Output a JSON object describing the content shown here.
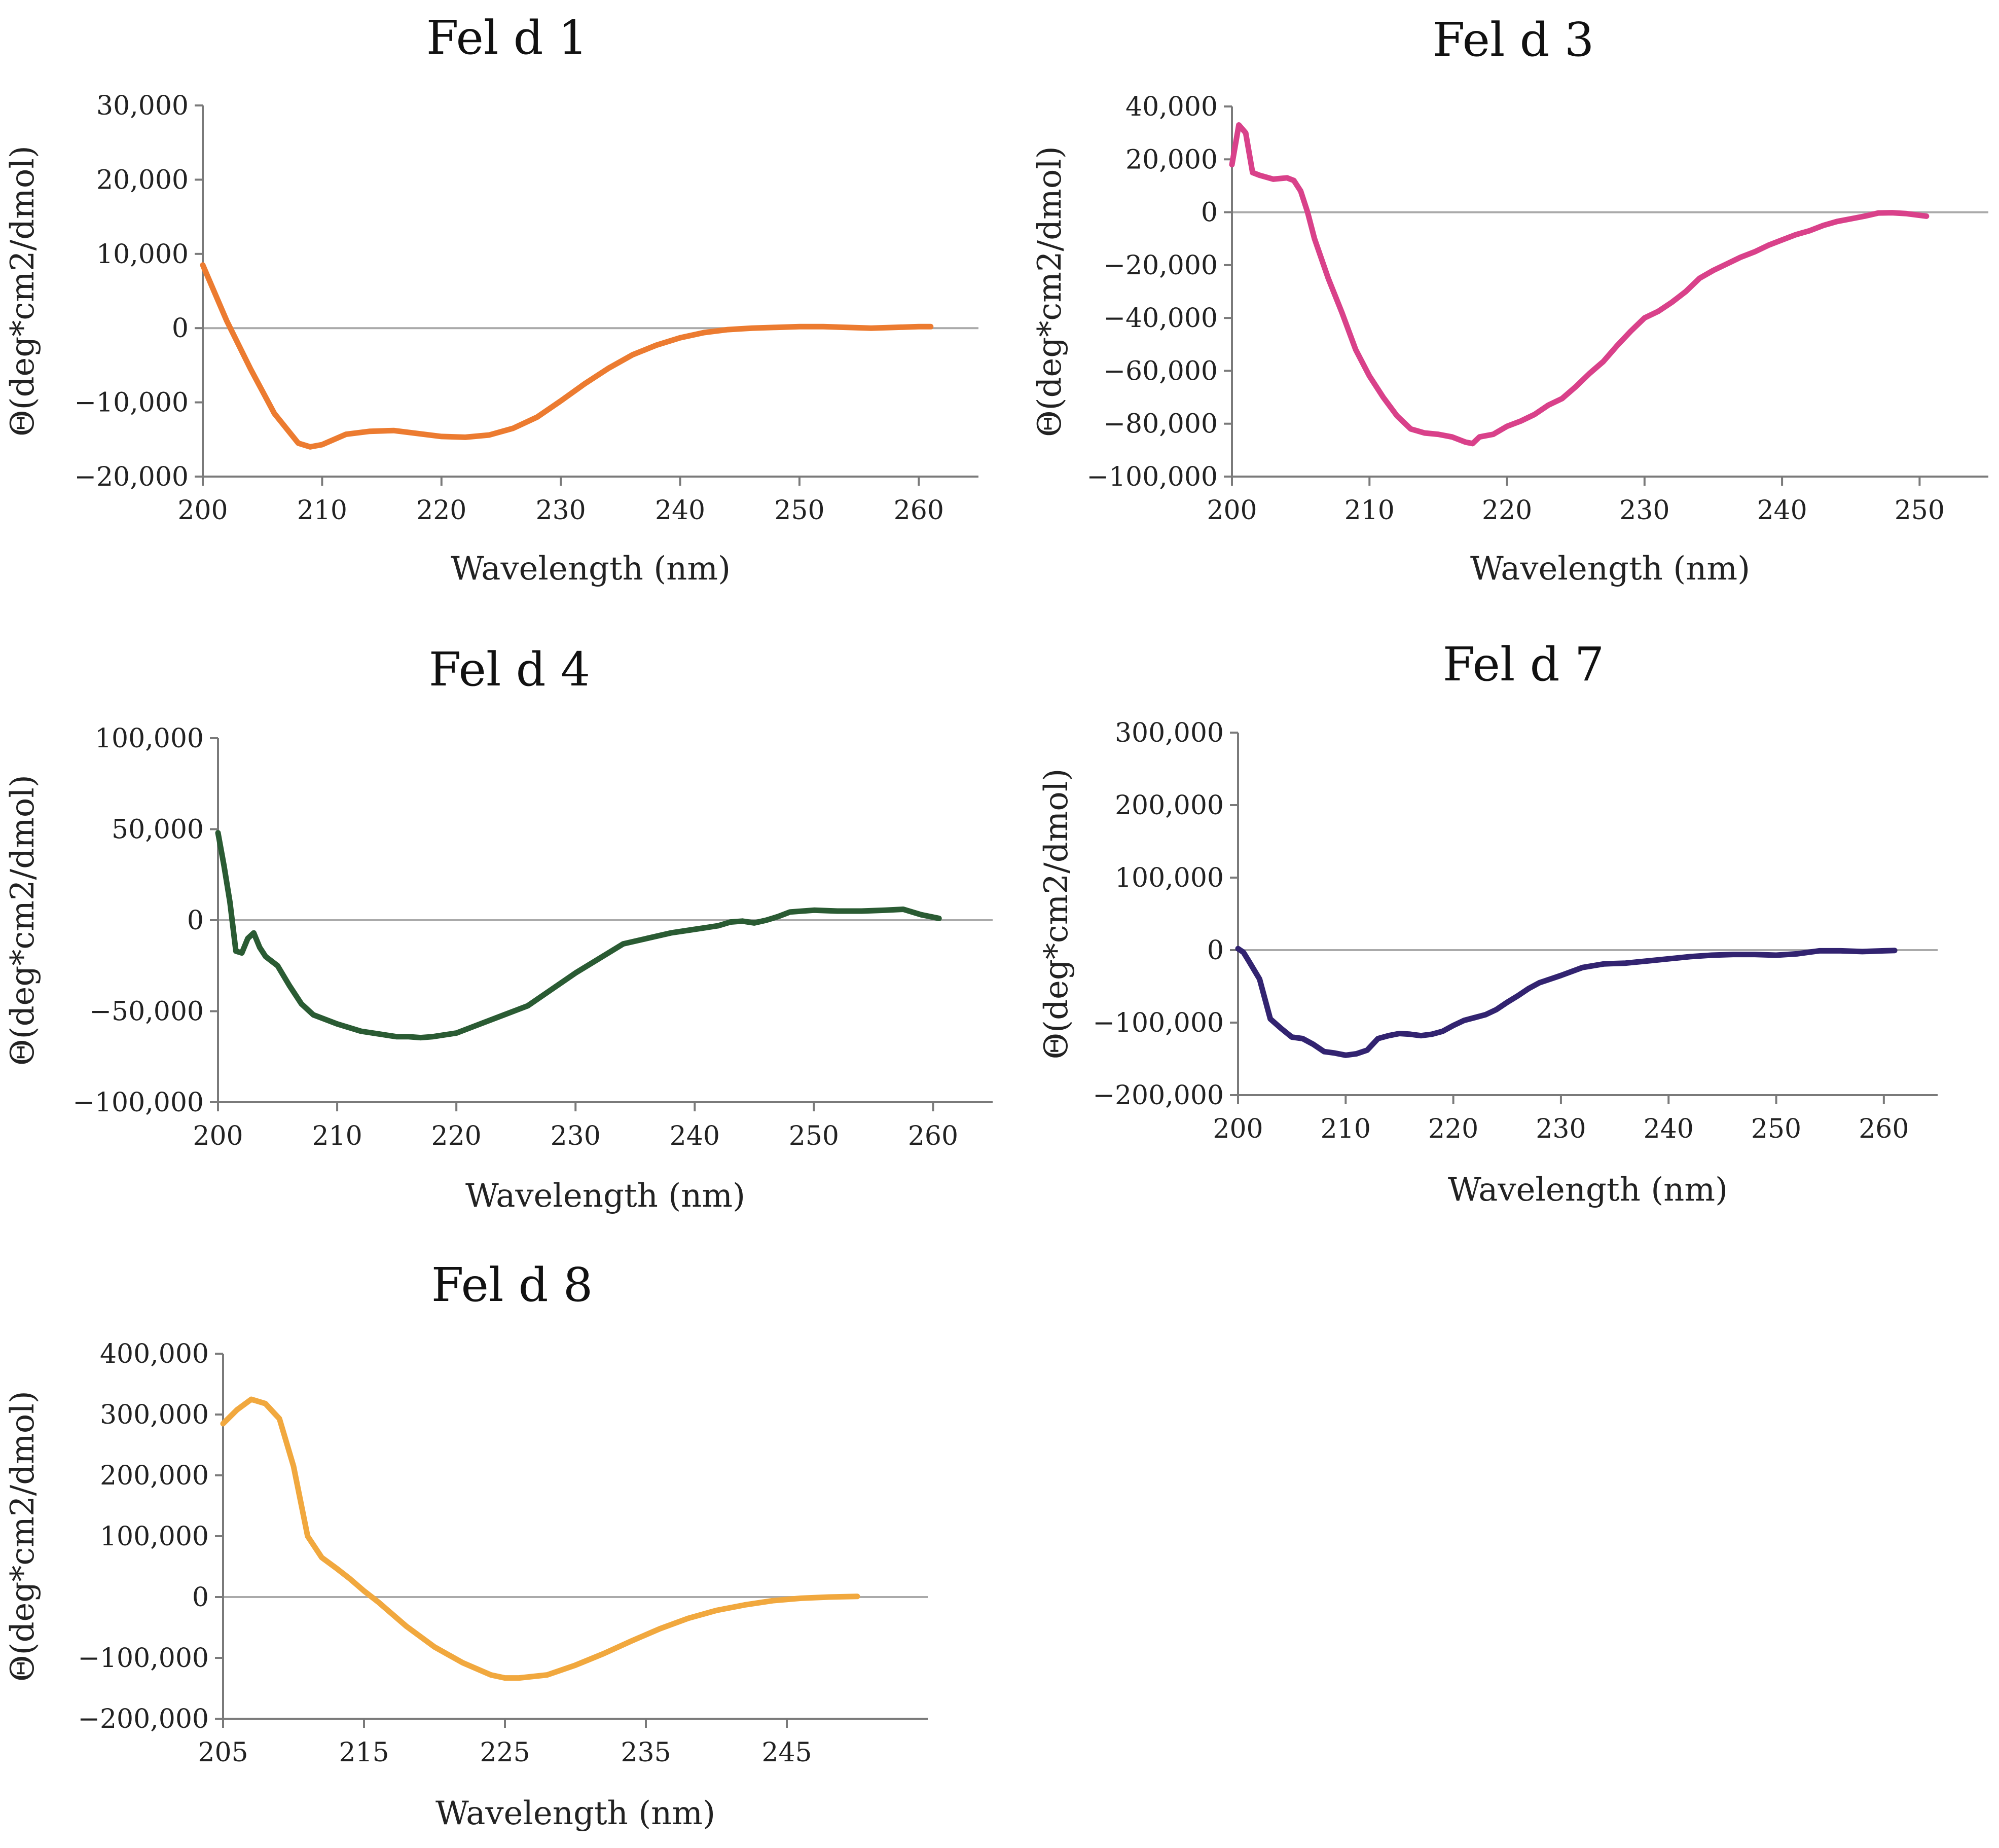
{
  "chart_data": [
    {
      "type": "line",
      "title": "Fel d 1",
      "xlabel": "Wavelength (nm)",
      "ylabel": "Θ(deg*cm2/dmol)",
      "xlim": [
        200,
        265
      ],
      "ylim": [
        -20000,
        30000
      ],
      "xticks": [
        200,
        210,
        220,
        230,
        240,
        250,
        260
      ],
      "xtick_labels": [
        "200",
        "210",
        "220",
        "230",
        "240",
        "250",
        "260"
      ],
      "yticks": [
        -20000,
        -10000,
        0,
        10000,
        20000,
        30000
      ],
      "ytick_labels": [
        "−20,000",
        "−10,000",
        "0",
        "10,000",
        "20,000",
        "30,000"
      ],
      "color": "#ec7b30",
      "series": [
        {
          "name": "Fel d 1",
          "x": [
            200,
            202,
            204,
            206,
            208,
            209,
            210,
            212,
            214,
            216,
            218,
            220,
            222,
            224,
            226,
            228,
            230,
            232,
            234,
            236,
            238,
            240,
            242,
            244,
            246,
            248,
            250,
            252,
            254,
            256,
            258,
            260,
            261
          ],
          "y": [
            8500,
            1000,
            -5500,
            -11500,
            -15500,
            -16000,
            -15700,
            -14300,
            -13900,
            -13800,
            -14200,
            -14600,
            -14700,
            -14400,
            -13500,
            -12000,
            -9800,
            -7500,
            -5400,
            -3600,
            -2300,
            -1300,
            -600,
            -200,
            0,
            100,
            200,
            200,
            100,
            0,
            100,
            200,
            200
          ]
        }
      ]
    },
    {
      "type": "line",
      "title": "Fel d 3",
      "xlabel": "Wavelength (nm)",
      "ylabel": "Θ(deg*cm2/dmol)",
      "xlim": [
        200,
        255
      ],
      "ylim": [
        -100000,
        40000
      ],
      "xticks": [
        200,
        210,
        220,
        230,
        240,
        250
      ],
      "xtick_labels": [
        "200",
        "210",
        "220",
        "230",
        "240",
        "250"
      ],
      "yticks": [
        -100000,
        -80000,
        -60000,
        -40000,
        -20000,
        0,
        20000,
        40000
      ],
      "ytick_labels": [
        "−100,000",
        "−80,000",
        "−60,000",
        "−40,000",
        "−20,000",
        "0",
        "20,000",
        "40,000"
      ],
      "color": "#d9418a",
      "series": [
        {
          "name": "Fel d 3",
          "x": [
            200,
            200.5,
            201,
            201.5,
            202,
            203,
            204,
            204.5,
            205,
            205.5,
            206,
            207,
            208,
            209,
            210,
            211,
            212,
            213,
            214,
            215,
            216,
            217,
            217.5,
            218,
            219,
            220,
            221,
            222,
            223,
            224,
            225,
            226,
            227,
            228,
            229,
            230,
            231,
            232,
            233,
            234,
            235,
            236,
            237,
            238,
            239,
            240,
            241,
            242,
            243,
            244,
            245,
            246,
            247,
            248,
            249,
            250.5
          ],
          "y": [
            18000,
            33000,
            30000,
            15000,
            14000,
            12500,
            13000,
            12000,
            8000,
            0,
            -10000,
            -25000,
            -38000,
            -52000,
            -62000,
            -70000,
            -77000,
            -82000,
            -83500,
            -84000,
            -85000,
            -87000,
            -87500,
            -85000,
            -84000,
            -81000,
            -79000,
            -76500,
            -73000,
            -70500,
            -66000,
            -61000,
            -56500,
            -50500,
            -45000,
            -40000,
            -37500,
            -34000,
            -30000,
            -25000,
            -22000,
            -19500,
            -17000,
            -15000,
            -12500,
            -10500,
            -8500,
            -7000,
            -5000,
            -3500,
            -2500,
            -1500,
            -300,
            -200,
            -500,
            -1500
          ]
        }
      ]
    },
    {
      "type": "line",
      "title": "Fel d 4",
      "xlabel": "Wavelength (nm)",
      "ylabel": "Θ(deg*cm2/dmol)",
      "xlim": [
        200,
        265
      ],
      "ylim": [
        -100000,
        100000
      ],
      "xticks": [
        200,
        210,
        220,
        230,
        240,
        250,
        260
      ],
      "xtick_labels": [
        "200",
        "210",
        "220",
        "230",
        "240",
        "250",
        "260"
      ],
      "yticks": [
        -100000,
        -50000,
        0,
        50000,
        100000
      ],
      "ytick_labels": [
        "−100,000",
        "−50,000",
        "0",
        "50,000",
        "100,000"
      ],
      "color": "#2a5b33",
      "series": [
        {
          "name": "Fel d 4",
          "x": [
            200,
            200.5,
            201,
            201.5,
            202,
            202.5,
            203,
            203.5,
            204,
            205,
            206,
            207,
            208,
            210,
            212,
            214,
            215,
            216,
            217,
            218,
            219,
            220,
            222,
            224,
            226,
            228,
            230,
            232,
            234,
            236,
            238,
            240,
            242,
            243,
            244,
            245,
            246,
            247,
            248,
            250,
            252,
            254,
            256,
            257.5,
            259,
            260.5
          ],
          "y": [
            48000,
            30000,
            10000,
            -17000,
            -18000,
            -10000,
            -7000,
            -15000,
            -20000,
            -25000,
            -36000,
            -46000,
            -52000,
            -57000,
            -61000,
            -63000,
            -64000,
            -64000,
            -64500,
            -64000,
            -63000,
            -62000,
            -57000,
            -52000,
            -47000,
            -38000,
            -29000,
            -21000,
            -13000,
            -10000,
            -7000,
            -5000,
            -3000,
            -1000,
            -500,
            -1500,
            0,
            2000,
            4500,
            5500,
            5000,
            5000,
            5500,
            6000,
            3000,
            1000
          ]
        }
      ]
    },
    {
      "type": "line",
      "title": "Fel d 7",
      "xlabel": "Wavelength (nm)",
      "ylabel": "Θ(deg*cm2/dmol)",
      "xlim": [
        200,
        265
      ],
      "ylim": [
        -200000,
        300000
      ],
      "xticks": [
        200,
        210,
        220,
        230,
        240,
        250,
        260
      ],
      "xtick_labels": [
        "200",
        "210",
        "220",
        "230",
        "240",
        "250",
        "260"
      ],
      "yticks": [
        -200000,
        -100000,
        0,
        100000,
        200000,
        300000
      ],
      "ytick_labels": [
        "−200,000",
        "−100,000",
        "0",
        "100,000",
        "200,000",
        "300,000"
      ],
      "color": "#322370",
      "series": [
        {
          "name": "Fel d 7",
          "x": [
            200,
            200.5,
            201,
            202,
            203,
            204,
            205,
            206,
            207,
            208,
            209,
            210,
            211,
            212,
            213,
            214,
            215,
            216,
            217,
            218,
            219,
            220,
            221,
            222,
            223,
            224,
            225,
            226,
            227,
            228,
            229,
            230,
            232,
            234,
            236,
            238,
            240,
            242,
            244,
            246,
            248,
            250,
            252,
            254,
            256,
            258,
            260,
            261
          ],
          "y": [
            2000,
            -3000,
            -15000,
            -40000,
            -95000,
            -108000,
            -120000,
            -122000,
            -130000,
            -140000,
            -142000,
            -145000,
            -143000,
            -138000,
            -122000,
            -118000,
            -115000,
            -116000,
            -118000,
            -116000,
            -112000,
            -104000,
            -97000,
            -93000,
            -89000,
            -82000,
            -72000,
            -63000,
            -53000,
            -45000,
            -40000,
            -35000,
            -24000,
            -19000,
            -18000,
            -15000,
            -12000,
            -9000,
            -7000,
            -6000,
            -6000,
            -7000,
            -5000,
            -1000,
            -1000,
            -2000,
            -1000,
            -500
          ]
        }
      ]
    },
    {
      "type": "line",
      "title": "Fel d 8",
      "xlabel": "Wavelength (nm)",
      "ylabel": "Θ(deg*cm2/dmol)",
      "xlim": [
        205,
        255
      ],
      "ylim": [
        -200000,
        400000
      ],
      "xticks": [
        205,
        215,
        225,
        235,
        245
      ],
      "xtick_labels": [
        "205",
        "215",
        "225",
        "235",
        "245"
      ],
      "yticks": [
        -200000,
        -100000,
        0,
        100000,
        200000,
        300000,
        400000
      ],
      "ytick_labels": [
        "−200,000",
        "−100,000",
        "0",
        "100,000",
        "200,000",
        "300,000",
        "400,000"
      ],
      "color": "#f1a83e",
      "series": [
        {
          "name": "Fel d 8",
          "x": [
            205,
            206,
            207,
            208,
            209,
            210,
            211,
            212,
            213,
            214,
            215,
            216,
            218,
            220,
            222,
            224,
            225,
            226,
            228,
            230,
            232,
            234,
            236,
            238,
            240,
            242,
            244,
            246,
            248,
            250
          ],
          "y": [
            285000,
            308000,
            325000,
            318000,
            293000,
            215000,
            100000,
            65000,
            48000,
            30000,
            10000,
            -8000,
            -48000,
            -82000,
            -108000,
            -128000,
            -133000,
            -133000,
            -128000,
            -112000,
            -93000,
            -72000,
            -52000,
            -35000,
            -22000,
            -13000,
            -6000,
            -2000,
            0,
            1000
          ]
        }
      ]
    }
  ]
}
